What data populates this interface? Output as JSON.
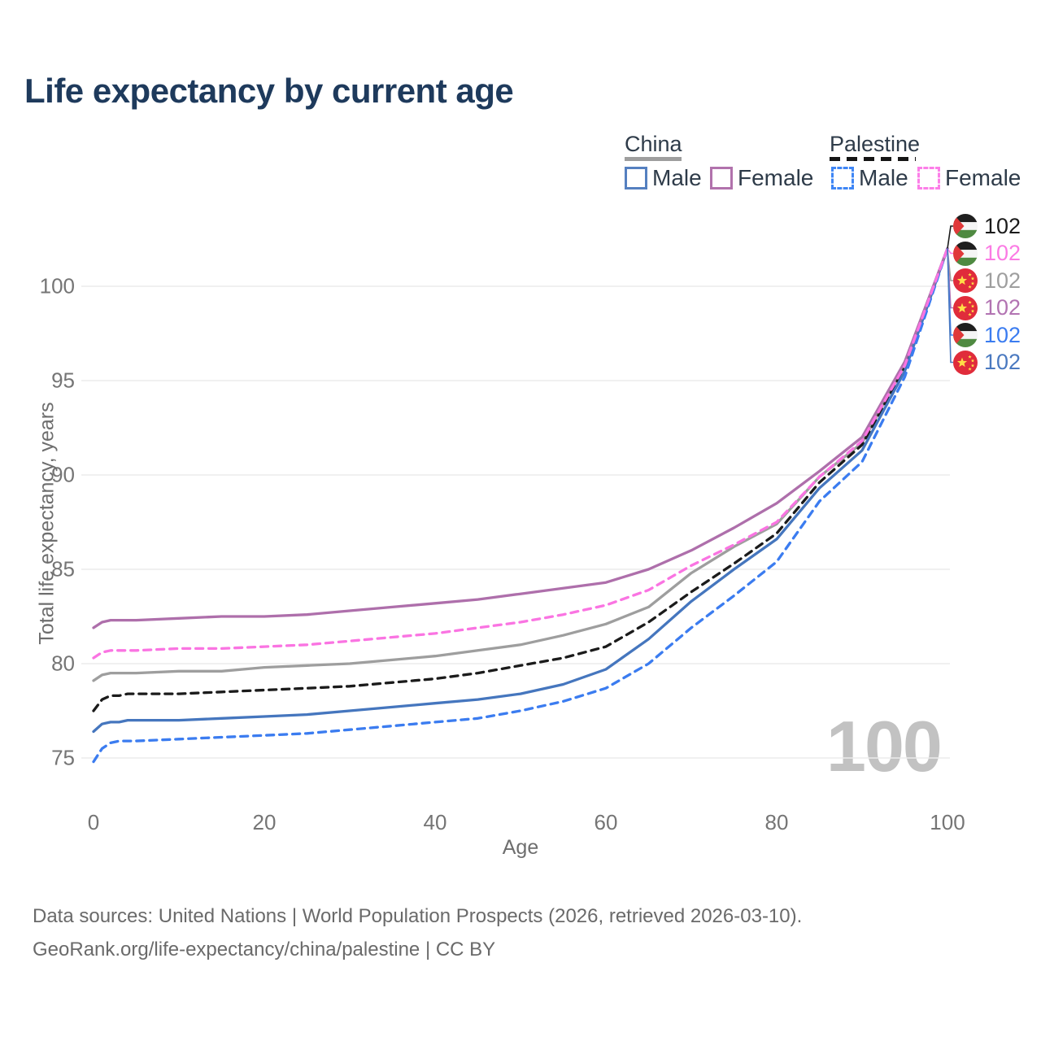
{
  "title": "Life expectancy by current age",
  "legend": {
    "groups": [
      {
        "label": "China",
        "line_style": "solid",
        "line_color": "#9e9e9e",
        "items": [
          {
            "label": "Male",
            "color": "#5580c0",
            "style": "solid"
          },
          {
            "label": "Female",
            "color": "#b172ac",
            "style": "solid"
          }
        ]
      },
      {
        "label": "Palestine",
        "line_style": "dashed",
        "line_color": "#151515",
        "items": [
          {
            "label": "Male",
            "color": "#3f86f5",
            "style": "dashed"
          },
          {
            "label": "Female",
            "color": "#fc7ee8",
            "style": "dashed"
          }
        ]
      }
    ]
  },
  "chart_data": {
    "type": "line",
    "title": "Life expectancy by current age",
    "xlabel": "Age",
    "ylabel": "Total life expectancy, years",
    "x_ticks": [
      0,
      20,
      40,
      60,
      80,
      100
    ],
    "y_ticks": [
      75,
      80,
      85,
      90,
      95,
      100
    ],
    "xlim": [
      0,
      100
    ],
    "ylim": [
      74,
      103
    ],
    "grid": "horizontal",
    "legend_position": "top-right",
    "ages": [
      0,
      1,
      2,
      3,
      4,
      5,
      10,
      15,
      20,
      25,
      30,
      35,
      40,
      45,
      50,
      55,
      60,
      65,
      70,
      75,
      80,
      85,
      90,
      95,
      100
    ],
    "series": [
      {
        "name": "China total",
        "country": "China",
        "sex": "total",
        "color": "#9e9e9e",
        "dash": "solid",
        "values": [
          79.1,
          79.4,
          79.5,
          79.5,
          79.5,
          79.5,
          79.6,
          79.6,
          79.8,
          79.9,
          80.0,
          80.2,
          80.4,
          80.7,
          81.0,
          81.5,
          82.1,
          83.0,
          84.8,
          86.2,
          87.4,
          89.9,
          91.7,
          95.8,
          102
        ]
      },
      {
        "name": "Palestine total",
        "country": "Palestine",
        "sex": "total",
        "color": "#1b1b1b",
        "dash": "dashed",
        "values": [
          77.5,
          78.1,
          78.3,
          78.3,
          78.4,
          78.4,
          78.4,
          78.5,
          78.6,
          78.7,
          78.8,
          79.0,
          79.2,
          79.5,
          79.9,
          80.3,
          80.9,
          82.2,
          83.8,
          85.3,
          86.9,
          89.6,
          91.6,
          95.7,
          102
        ]
      },
      {
        "name": "China male",
        "country": "China",
        "sex": "male",
        "color": "#4576be",
        "dash": "solid",
        "values": [
          76.4,
          76.8,
          76.9,
          76.9,
          77.0,
          77.0,
          77.0,
          77.1,
          77.2,
          77.3,
          77.5,
          77.7,
          77.9,
          78.1,
          78.4,
          78.9,
          79.7,
          81.3,
          83.3,
          85.0,
          86.6,
          89.3,
          91.3,
          95.5,
          102
        ]
      },
      {
        "name": "Palestine male",
        "country": "Palestine",
        "sex": "male",
        "color": "#3b7cf0",
        "dash": "dashed",
        "values": [
          74.8,
          75.5,
          75.8,
          75.9,
          75.9,
          75.9,
          76.0,
          76.1,
          76.2,
          76.3,
          76.5,
          76.7,
          76.9,
          77.1,
          77.5,
          78.0,
          78.7,
          80.0,
          81.9,
          83.6,
          85.4,
          88.6,
          90.7,
          95.2,
          102
        ]
      },
      {
        "name": "China female",
        "country": "China",
        "sex": "female",
        "color": "#ae6fab",
        "dash": "solid",
        "values": [
          81.9,
          82.2,
          82.3,
          82.3,
          82.3,
          82.3,
          82.4,
          82.5,
          82.5,
          82.6,
          82.8,
          83.0,
          83.2,
          83.4,
          83.7,
          84.0,
          84.3,
          85.0,
          86.0,
          87.2,
          88.5,
          90.2,
          92.0,
          96.0,
          102
        ]
      },
      {
        "name": "Palestine female",
        "country": "Palestine",
        "sex": "female",
        "color": "#fa74e2",
        "dash": "dashed",
        "values": [
          80.3,
          80.6,
          80.7,
          80.7,
          80.7,
          80.7,
          80.8,
          80.8,
          80.9,
          81.0,
          81.2,
          81.4,
          81.6,
          81.9,
          82.2,
          82.6,
          83.1,
          83.9,
          85.2,
          86.3,
          87.5,
          89.9,
          91.8,
          95.8,
          102
        ]
      }
    ],
    "end_value_age": 100
  },
  "end_labels": [
    {
      "flag": "palestine",
      "series": "Palestine total",
      "value": "102",
      "color": "#1b1b1b"
    },
    {
      "flag": "palestine",
      "series": "Palestine female",
      "value": "102",
      "color": "#fb7be4"
    },
    {
      "flag": "china",
      "series": "China total",
      "value": "102",
      "color": "#9e9e9e"
    },
    {
      "flag": "china",
      "series": "China female",
      "value": "102",
      "color": "#b273b2"
    },
    {
      "flag": "palestine",
      "series": "Palestine male",
      "value": "102",
      "color": "#3b7cf0"
    },
    {
      "flag": "china",
      "series": "China male",
      "value": "102",
      "color": "#4a79c0"
    }
  ],
  "watermark": "100",
  "footer": {
    "line1": "Data sources: United Nations | World Population Prospects (2026, retrieved 2026-03-10).",
    "line2": "GeoRank.org/life-expectancy/china/palestine | CC BY"
  },
  "colors": {
    "title": "#1e3a5c",
    "axis_text": "#757575",
    "gridline": "#ebebeb",
    "watermark": "#c2c2c2",
    "flag_palestine": [
      "#1f1f1f",
      "#f5f5f5",
      "#4f8a41",
      "#e0393a"
    ],
    "flag_china": [
      "#e02c3b",
      "#ffde47"
    ]
  }
}
